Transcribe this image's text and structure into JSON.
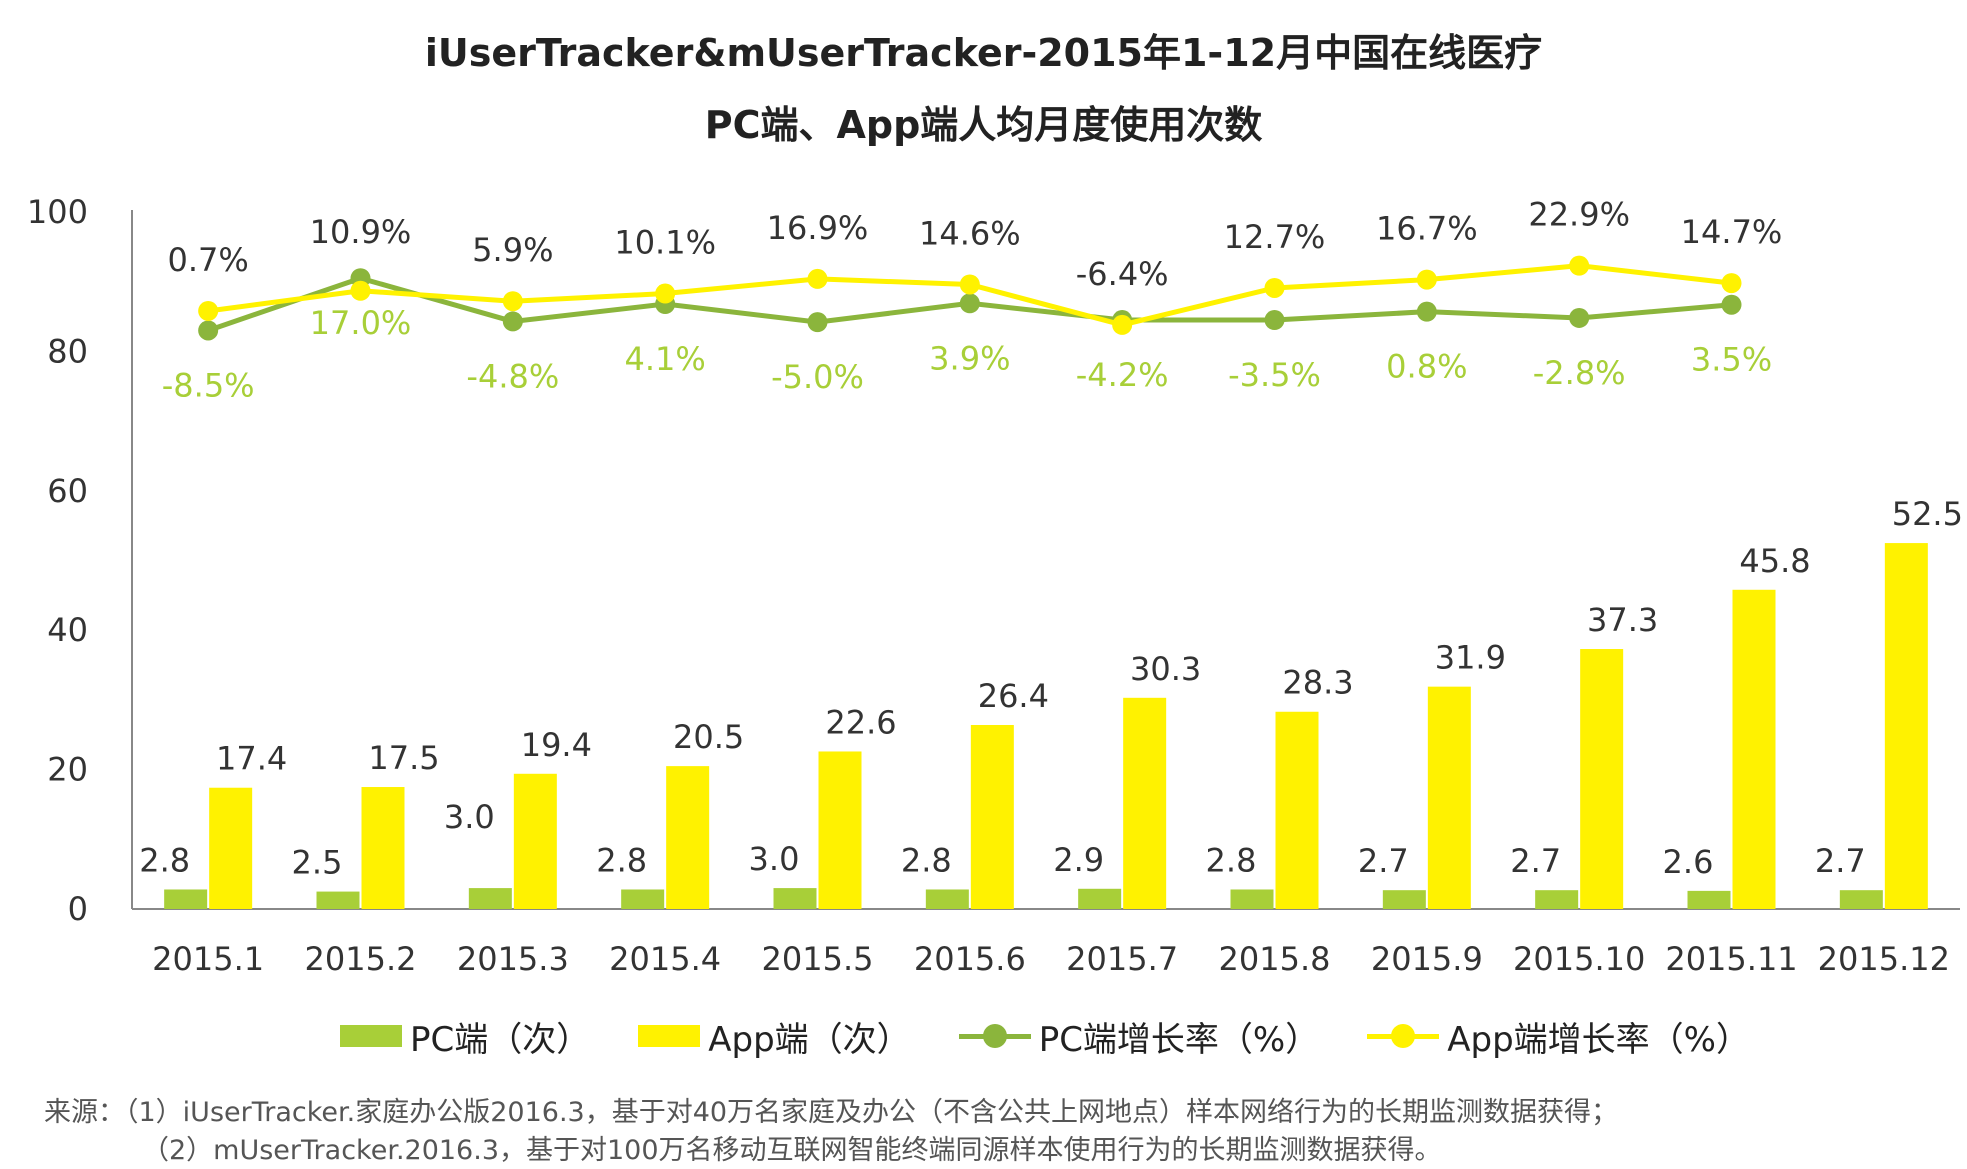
{
  "title": {
    "line1": "iUserTracker&mUserTracker-2015年1-12月中国在线医疗",
    "line2": "PC端、App端人均月度使用次数"
  },
  "colors": {
    "pc": "#A8CF38",
    "app": "#FFF200",
    "pc_line": "#8BB53C",
    "app_line": "#FFF200",
    "pc_rate_label": "#A8CF38"
  },
  "chart_data": {
    "type": "bar",
    "categories": [
      "2015.1",
      "2015.2",
      "2015.3",
      "2015.4",
      "2015.5",
      "2015.6",
      "2015.7",
      "2015.8",
      "2015.9",
      "2015.10",
      "2015.11",
      "2015.12"
    ],
    "ylim": [
      0,
      100
    ],
    "yticks": [
      0,
      20,
      40,
      60,
      80,
      100
    ],
    "series": [
      {
        "name": "PC端（次）",
        "kind": "bar",
        "values": [
          2.8,
          2.5,
          3.0,
          2.8,
          3.0,
          2.8,
          2.9,
          2.8,
          2.7,
          2.7,
          2.6,
          2.7
        ],
        "labels": [
          "2.8",
          "2.5",
          "3.0",
          "2.8",
          "3.0",
          "2.8",
          "2.9",
          "2.8",
          "2.7",
          "2.7",
          "2.6",
          "2.7"
        ]
      },
      {
        "name": "App端（次）",
        "kind": "bar",
        "values": [
          17.4,
          17.5,
          19.4,
          20.5,
          22.6,
          26.4,
          30.3,
          28.3,
          31.9,
          37.3,
          45.8,
          52.5
        ],
        "labels": [
          "17.4",
          "17.5",
          "19.4",
          "20.5",
          "22.6",
          "26.4",
          "30.3",
          "28.3",
          "31.9",
          "37.3",
          "45.8",
          "52.5"
        ]
      },
      {
        "name": "PC端增长率（%）",
        "kind": "line",
        "values": [
          -8.5,
          17.0,
          -4.8,
          4.1,
          -5.0,
          3.9,
          -4.2,
          -3.5,
          0.8,
          -2.8,
          3.5,
          null
        ],
        "display_labels": [
          "-8.5%",
          "17.0%",
          "-4.8%",
          "4.1%",
          "-5.0%",
          "3.9%",
          "-4.2%",
          "-3.5%",
          "0.8%",
          "-2.8%",
          "3.5%"
        ]
      },
      {
        "name": "App端增长率（%）",
        "kind": "line",
        "values": [
          0.7,
          10.9,
          5.9,
          10.1,
          16.9,
          14.6,
          -6.4,
          12.7,
          16.7,
          22.9,
          14.7,
          null
        ],
        "display_labels": [
          "0.7%",
          "10.9%",
          "5.9%",
          "10.1%",
          "16.9%",
          "14.6%",
          "-6.4%",
          "12.7%",
          "16.7%",
          "22.9%",
          "14.7%"
        ]
      }
    ],
    "line_positions": {
      "pc": [
        83.0,
        90.5,
        84.3,
        86.8,
        84.2,
        86.9,
        84.5,
        84.5,
        85.7,
        84.8,
        86.7
      ],
      "app": [
        85.8,
        88.7,
        87.2,
        88.3,
        90.4,
        89.6,
        83.8,
        89.1,
        90.3,
        92.3,
        89.8
      ]
    }
  },
  "legend": {
    "pc_bar": "PC端（次）",
    "app_bar": "App端（次）",
    "pc_rate": "PC端增长率（%）",
    "app_rate": "App端增长率（%）"
  },
  "source": {
    "line1": "来源：（1）iUserTracker.家庭办公版2016.3，基于对40万名家庭及办公（不含公共上网地点）样本网络行为的长期监测数据获得；",
    "line2": "（2）mUserTracker.2016.3，基于对100万名移动互联网智能终端同源样本使用行为的长期监测数据获得。"
  }
}
